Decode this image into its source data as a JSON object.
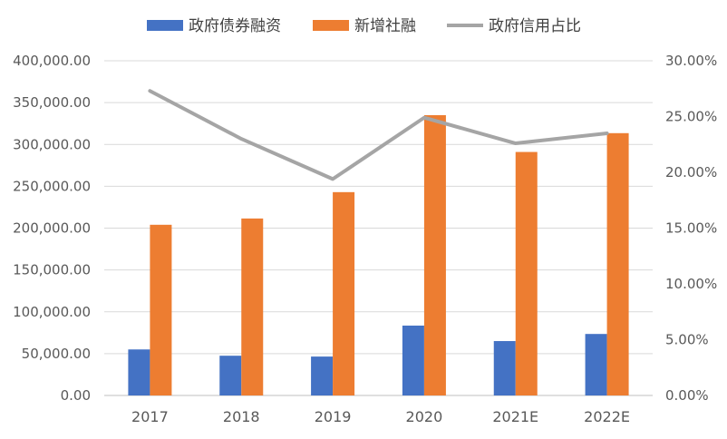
{
  "chart_data": {
    "type": "bar",
    "categories": [
      "2017",
      "2018",
      "2019",
      "2020",
      "2021E",
      "2022E"
    ],
    "series": [
      {
        "name": "政府债券融资",
        "type": "bar",
        "axis": "left",
        "color": "#4472C4",
        "values": [
          55000,
          47500,
          46500,
          83500,
          65000,
          73500
        ]
      },
      {
        "name": "新增社融",
        "type": "bar",
        "axis": "left",
        "color": "#ED7D31",
        "values": [
          204000,
          211500,
          243000,
          335000,
          291000,
          313500
        ]
      },
      {
        "name": "政府信用占比",
        "type": "line",
        "axis": "right",
        "color": "#A5A5A5",
        "values": [
          0.273,
          0.23,
          0.194,
          0.249,
          0.226,
          0.235
        ]
      }
    ],
    "y_left": {
      "ylim": [
        0,
        400000
      ],
      "ticks": [
        "0.00",
        "50,000.00",
        "100,000.00",
        "150,000.00",
        "200,000.00",
        "250,000.00",
        "300,000.00",
        "350,000.00",
        "400,000.00"
      ]
    },
    "y_right": {
      "ylim": [
        0,
        0.3
      ],
      "ticks": [
        "0.00%",
        "5.00%",
        "10.00%",
        "15.00%",
        "20.00%",
        "25.00%",
        "30.00%"
      ]
    },
    "legend": {
      "position": "top"
    },
    "grid": true
  }
}
